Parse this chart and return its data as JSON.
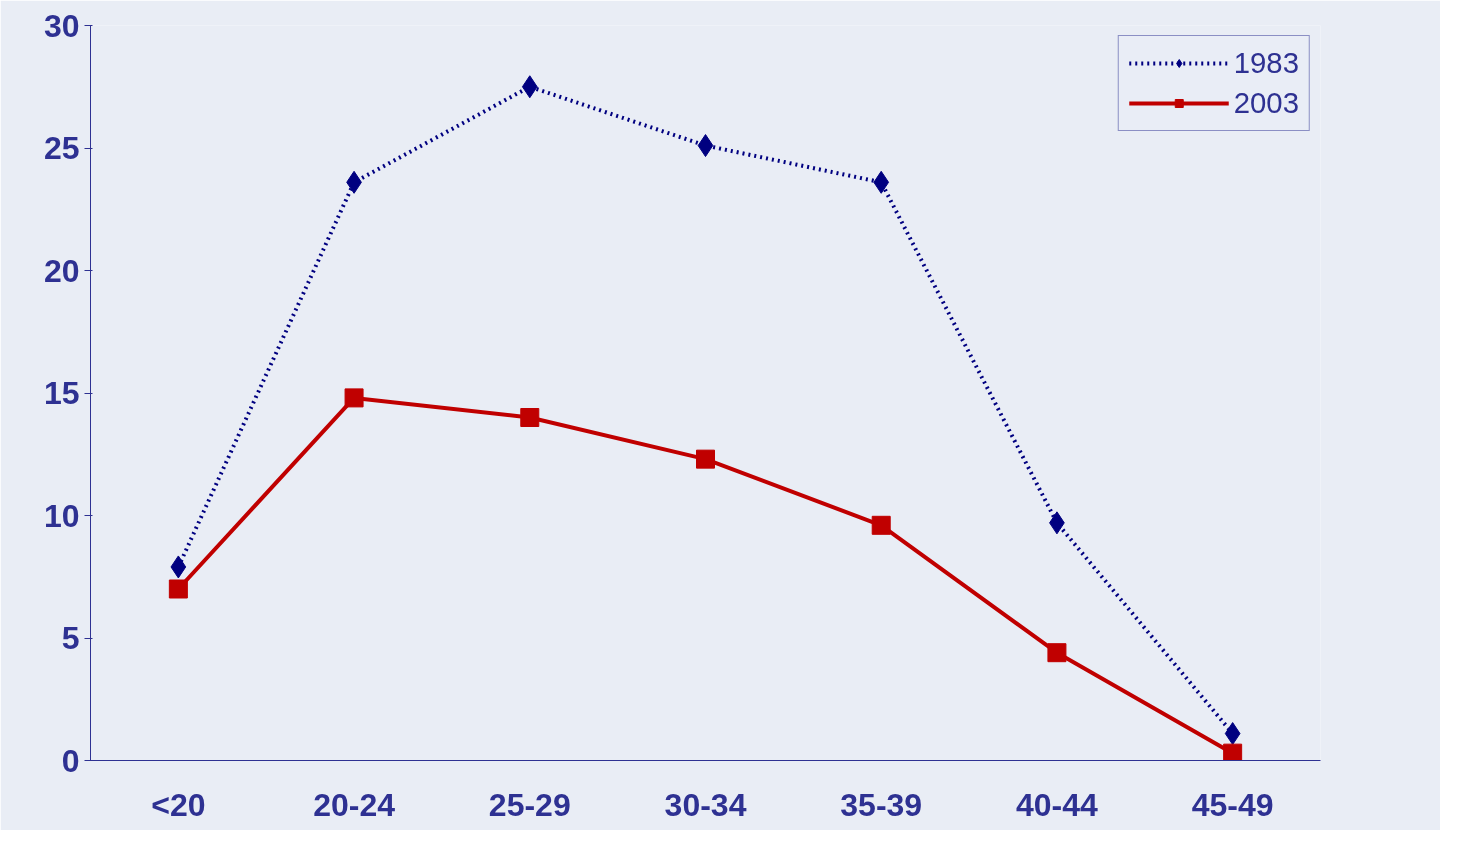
{
  "chart_data": {
    "type": "line",
    "categories": [
      "<20",
      "20-24",
      "25-29",
      "30-34",
      "35-39",
      "40-44",
      "45-49"
    ],
    "series": [
      {
        "name": "1983",
        "color": "#000080",
        "values": [
          7.9,
          23.6,
          27.5,
          25.1,
          23.6,
          9.7,
          1.1
        ],
        "marker": "diamond",
        "line_style": "dotted"
      },
      {
        "name": "2003",
        "color": "#c00000",
        "values": [
          7.0,
          14.8,
          14.0,
          12.3,
          9.6,
          4.4,
          0.3
        ],
        "marker": "square",
        "line_style": "solid"
      }
    ],
    "ylim": [
      0,
      30
    ],
    "yticks": [
      0,
      5,
      10,
      15,
      20,
      25,
      30
    ],
    "grid": false,
    "legend": "top right"
  }
}
